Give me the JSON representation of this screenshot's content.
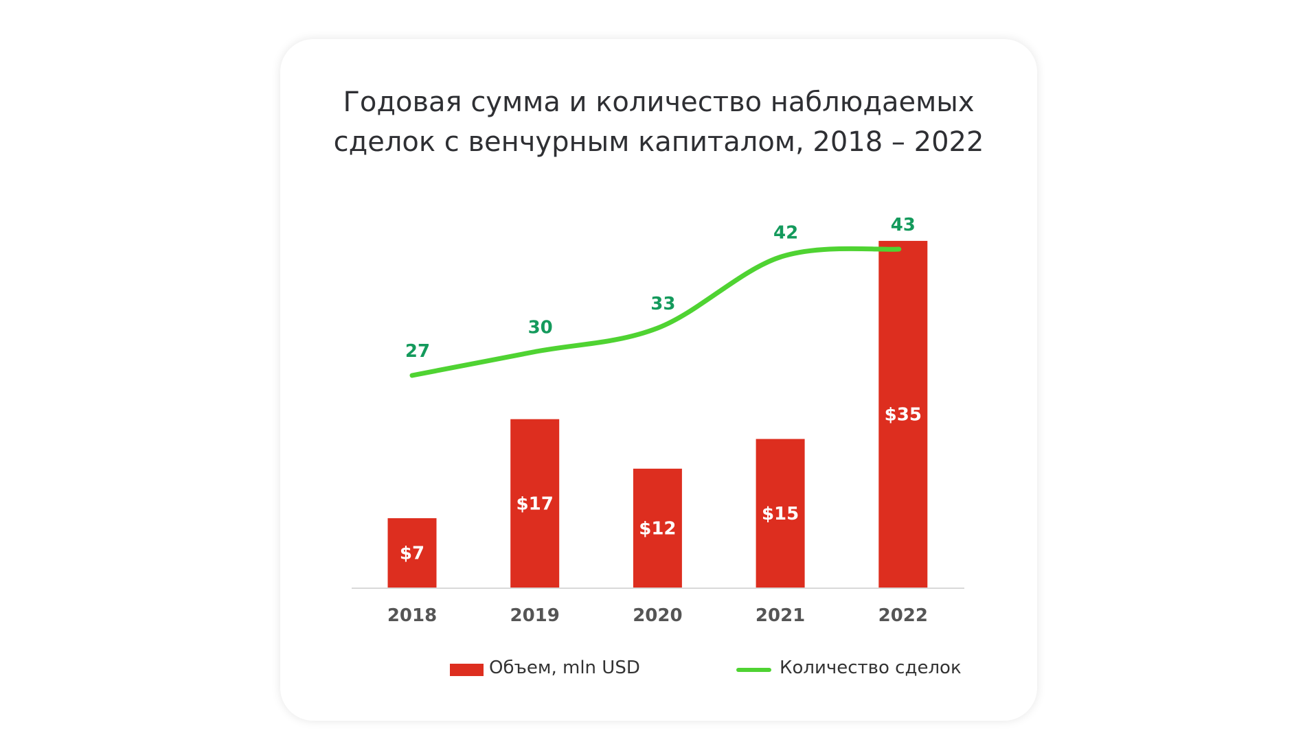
{
  "chart_data": {
    "type": "bar+line",
    "title_lines": [
      "Годовая сумма и количество наблюдаемых",
      "сделок с венчурным капиталом, 2018 – 2022"
    ],
    "categories": [
      "2018",
      "2019",
      "2020",
      "2021",
      "2022"
    ],
    "series": [
      {
        "name": "Объем, mln USD",
        "type": "bar",
        "values": [
          7,
          17,
          12,
          15,
          35
        ],
        "labels": [
          "$7",
          "$17",
          "$12",
          "$15",
          "$35"
        ],
        "color": "#dd2e1f"
      },
      {
        "name": "Количество сделок",
        "type": "line",
        "values": [
          27,
          30,
          33,
          42,
          43
        ],
        "labels": [
          "27",
          "30",
          "33",
          "42",
          "43"
        ],
        "color": "#4fd332",
        "label_color": "#149a5c"
      }
    ],
    "grid": false,
    "legend_position": "bottom"
  }
}
